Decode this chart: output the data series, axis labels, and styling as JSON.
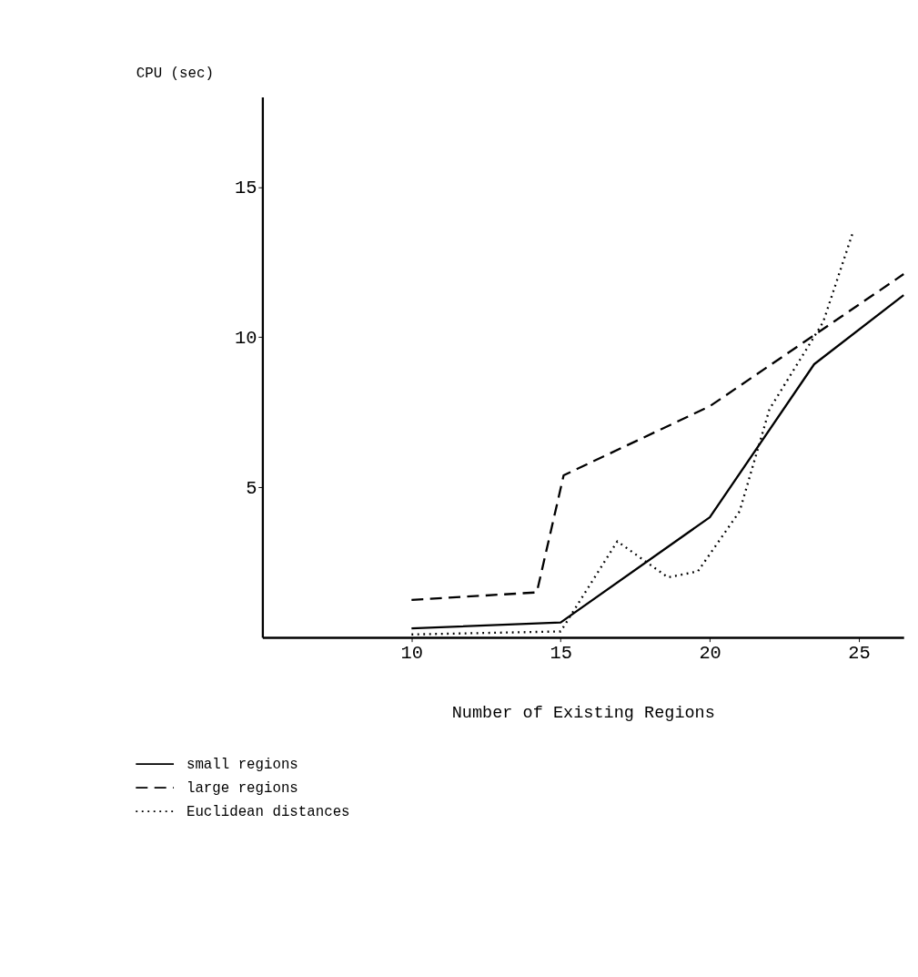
{
  "chart_data": {
    "type": "line",
    "xlabel": "Number of Existing Regions",
    "ylabel": "CPU (sec)",
    "xlim": [
      5,
      26.5
    ],
    "ylim": [
      0,
      18
    ],
    "xticks": [
      10,
      15,
      20,
      25
    ],
    "yticks": [
      5,
      10,
      15
    ],
    "grid": false,
    "marker": "none",
    "legend": "bottom left",
    "series": [
      {
        "name": "small regions",
        "color": "#000000",
        "line_style": "solid",
        "x": [
          10,
          15,
          20,
          23.5,
          26.5
        ],
        "values": [
          0.3,
          0.5,
          4.0,
          9.1,
          11.4
        ]
      },
      {
        "name": "large regions",
        "color": "#000000",
        "line_style": "dashed",
        "x": [
          10,
          14.2,
          15.1,
          20,
          26.5
        ],
        "values": [
          1.25,
          1.5,
          5.4,
          7.7,
          12.1
        ]
      },
      {
        "name": "Euclidean distances",
        "color": "#000000",
        "line_style": "dotted",
        "x": [
          10,
          15,
          16.9,
          18.6,
          19.6,
          21,
          22,
          23.8,
          24.7,
          24.8
        ],
        "values": [
          0.1,
          0.2,
          3.2,
          2.0,
          2.2,
          4.2,
          7.6,
          10.5,
          13.2,
          13.5
        ]
      }
    ]
  }
}
